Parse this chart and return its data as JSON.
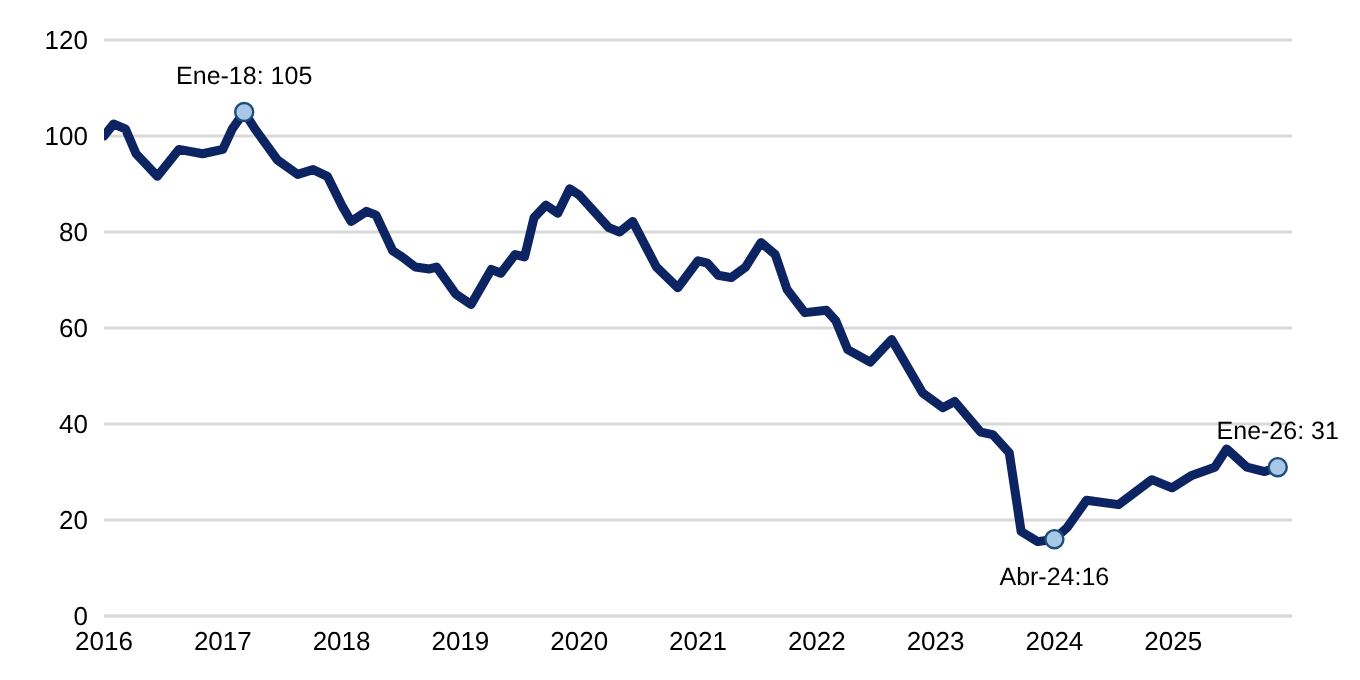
{
  "chart_data": {
    "type": "line",
    "xlim": [
      2016,
      2026
    ],
    "xticks": [
      2016,
      2017,
      2018,
      2019,
      2020,
      2021,
      2022,
      2023,
      2024,
      2025
    ],
    "ylim": [
      0,
      120
    ],
    "yticks": [
      0,
      20,
      40,
      60,
      80,
      100,
      120
    ],
    "grid": "y",
    "line_style": "solid",
    "series": [
      {
        "color": "#0c2461",
        "marker": "none",
        "x": [
          2016.0,
          2016.08,
          2016.18,
          2016.27,
          2016.45,
          2016.63,
          2016.83,
          2017.0,
          2017.08,
          2017.18,
          2017.27,
          2017.46,
          2017.63,
          2017.76,
          2017.88,
          2018.0,
          2018.08,
          2018.21,
          2018.29,
          2018.43,
          2018.51,
          2018.62,
          2018.74,
          2018.8,
          2018.96,
          2019.09,
          2019.26,
          2019.34,
          2019.46,
          2019.54,
          2019.62,
          2019.72,
          2019.82,
          2019.92,
          2020.0,
          2020.25,
          2020.34,
          2020.45,
          2020.65,
          2020.83,
          2021.0,
          2021.08,
          2021.17,
          2021.28,
          2021.4,
          2021.53,
          2021.65,
          2021.75,
          2021.9,
          2022.08,
          2022.16,
          2022.26,
          2022.45,
          2022.63,
          2022.89,
          2023.06,
          2023.16,
          2023.38,
          2023.48,
          2023.62,
          2023.72,
          2023.86,
          2024.0,
          2024.11,
          2024.27,
          2024.54,
          2024.82,
          2024.99,
          2025.15,
          2025.35,
          2025.45,
          2025.62,
          2025.77,
          2025.88
        ],
        "values": [
          100,
          102.5,
          101.5,
          96.3,
          91.6,
          97.2,
          96.3,
          97.2,
          101.5,
          105,
          101.5,
          95,
          92,
          93,
          91.6,
          85.6,
          82.2,
          84.3,
          83.5,
          76.1,
          74.8,
          72.7,
          72.3,
          72.7,
          67.1,
          64.9,
          72.2,
          71.4,
          75.3,
          74.8,
          83,
          85.6,
          83.9,
          89,
          87.7,
          80.9,
          80,
          82.2,
          72.7,
          68.4,
          74,
          73.5,
          71,
          70.5,
          72.7,
          77.8,
          75.3,
          68,
          63.2,
          63.7,
          61.5,
          55.5,
          52.9,
          57.6,
          46.5,
          43.4,
          44.7,
          38.3,
          37.8,
          34,
          17.6,
          15.5,
          16,
          18.5,
          24.1,
          23.2,
          28.4,
          26.7,
          29.2,
          31,
          34.8,
          31,
          30.1,
          31
        ]
      },
      {
        "type": "scatter",
        "color": "#a9c8e8",
        "marker": "circle",
        "x": [
          2017.18,
          2024.0,
          2025.88
        ],
        "values": [
          105,
          16,
          31
        ]
      }
    ],
    "annotations": [
      {
        "text": "Ene-18: 105",
        "x": 2017.18,
        "y": 105
      },
      {
        "text": "Abr-24:16",
        "x": 2024.0,
        "y": 16
      },
      {
        "text": "Ene-26: 31",
        "x": 2025.88,
        "y": 31
      }
    ]
  }
}
